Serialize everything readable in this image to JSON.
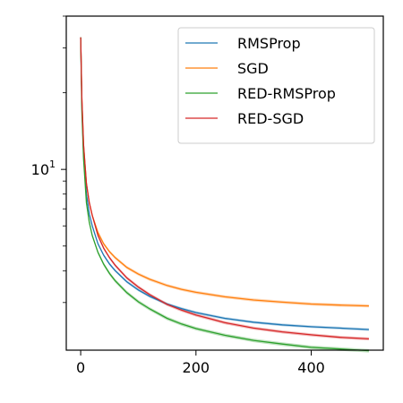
{
  "chart_data": {
    "type": "line",
    "title": "",
    "xlabel": "",
    "ylabel": "",
    "xscale": "linear",
    "yscale": "log",
    "xlim": [
      -25,
      525
    ],
    "ylim": [
      1.95,
      40
    ],
    "xticks": [
      {
        "value": 0,
        "label": "0"
      },
      {
        "value": 200,
        "label": "200"
      },
      {
        "value": 400,
        "label": "400"
      }
    ],
    "yticks_major": [
      {
        "value": 10,
        "base": "10",
        "exp": "1"
      }
    ],
    "yticks_minor": [
      3,
      4,
      5,
      6,
      7,
      8,
      9,
      20,
      30,
      40
    ],
    "grid": false,
    "legend": {
      "position": "top-right"
    },
    "series": [
      {
        "name": "RMSProp",
        "color": "#1f77b4",
        "x": [
          0,
          2,
          5,
          10,
          15,
          20,
          30,
          40,
          50,
          60,
          80,
          100,
          120,
          150,
          175,
          200,
          250,
          300,
          350,
          400,
          450,
          500
        ],
        "y": [
          33,
          18,
          11.5,
          8.0,
          6.7,
          6.0,
          5.1,
          4.6,
          4.25,
          4.0,
          3.62,
          3.36,
          3.17,
          2.96,
          2.84,
          2.74,
          2.6,
          2.51,
          2.45,
          2.41,
          2.38,
          2.35
        ],
        "band": 0.012
      },
      {
        "name": "SGD",
        "color": "#ff7f0e",
        "x": [
          0,
          2,
          5,
          10,
          15,
          20,
          30,
          40,
          50,
          60,
          80,
          100,
          120,
          150,
          175,
          200,
          250,
          300,
          350,
          400,
          450,
          500
        ],
        "y": [
          33,
          19,
          12.5,
          8.8,
          7.4,
          6.6,
          5.65,
          5.1,
          4.75,
          4.5,
          4.12,
          3.88,
          3.7,
          3.5,
          3.38,
          3.29,
          3.16,
          3.07,
          3.01,
          2.96,
          2.93,
          2.91
        ],
        "band": 0.014
      },
      {
        "name": "RED-RMSProp",
        "color": "#2ca02c",
        "x": [
          0,
          2,
          5,
          10,
          15,
          20,
          30,
          40,
          50,
          60,
          80,
          100,
          120,
          150,
          175,
          200,
          250,
          300,
          350,
          400,
          450,
          500
        ],
        "y": [
          33,
          17,
          11,
          7.4,
          6.2,
          5.5,
          4.72,
          4.24,
          3.9,
          3.65,
          3.28,
          3.02,
          2.83,
          2.6,
          2.47,
          2.37,
          2.23,
          2.13,
          2.06,
          2.0,
          1.97,
          1.94
        ],
        "band": 0.016
      },
      {
        "name": "RED-SGD",
        "color": "#d62728",
        "x": [
          0,
          2,
          5,
          10,
          15,
          20,
          30,
          40,
          50,
          60,
          80,
          100,
          120,
          150,
          175,
          200,
          250,
          300,
          350,
          400,
          450,
          500
        ],
        "y": [
          33,
          19,
          12.5,
          8.8,
          7.4,
          6.6,
          5.5,
          4.9,
          4.5,
          4.2,
          3.75,
          3.45,
          3.22,
          2.95,
          2.8,
          2.68,
          2.5,
          2.38,
          2.3,
          2.24,
          2.19,
          2.16
        ],
        "band": 0.014
      }
    ]
  }
}
